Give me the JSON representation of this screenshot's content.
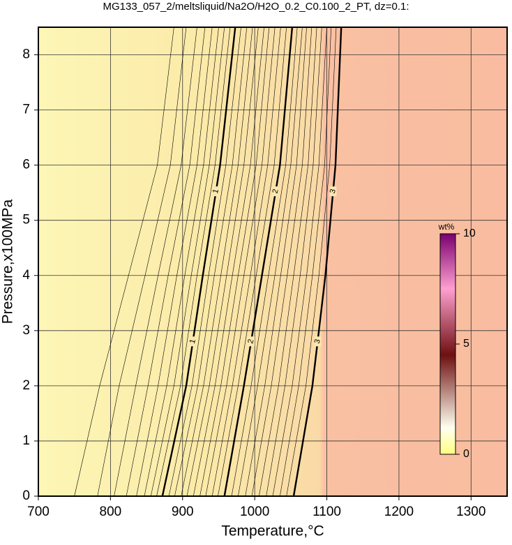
{
  "chart_data": {
    "type": "contour",
    "title": "MG133_057_2/meltsliquid/Na2O/H2O_0.2_C0.100_2_PT, dz=0.1:",
    "x_label": "Temperature,°C",
    "y_label": "Pressure,x100MPa",
    "xlim": [
      700,
      1350
    ],
    "ylim": [
      0,
      8.5
    ],
    "xticks": [
      700,
      800,
      900,
      1000,
      1100,
      1200,
      1300
    ],
    "yticks": [
      0,
      1,
      2,
      3,
      4,
      5,
      6,
      7,
      8
    ],
    "grid": true,
    "y_samples": [
      0,
      2,
      4,
      6,
      8.5
    ],
    "contours": [
      {
        "level": 0.2,
        "x": [
          750,
          785,
          825,
          865,
          888
        ]
      },
      {
        "level": 0.3,
        "x": [
          782,
          812,
          848,
          883,
          905
        ]
      },
      {
        "level": 0.4,
        "x": [
          805,
          835,
          866,
          898,
          920
        ]
      },
      {
        "level": 0.5,
        "x": [
          822,
          852,
          880,
          910,
          931
        ]
      },
      {
        "level": 0.6,
        "x": [
          836,
          866,
          892,
          920,
          941
        ]
      },
      {
        "level": 0.7,
        "x": [
          847,
          878,
          903,
          929,
          950
        ]
      },
      {
        "level": 0.8,
        "x": [
          856,
          888,
          912,
          937,
          958
        ]
      },
      {
        "level": 0.9,
        "x": [
          864,
          897,
          920,
          945,
          966
        ]
      },
      {
        "level": 1,
        "x": [
          872,
          905,
          928,
          952,
          973
        ]
      },
      {
        "level": 1.1,
        "x": [
          881,
          913,
          936,
          960,
          981
        ]
      },
      {
        "level": 1.2,
        "x": [
          889,
          921,
          944,
          969,
          989
        ]
      },
      {
        "level": 1.3,
        "x": [
          898,
          929,
          953,
          977,
          997
        ]
      },
      {
        "level": 1.4,
        "x": [
          906,
          937,
          961,
          985,
          1005
        ]
      },
      {
        "level": 1.5,
        "x": [
          915,
          945,
          969,
          994,
          1013
        ]
      },
      {
        "level": 1.6,
        "x": [
          924,
          953,
          977,
          1002,
          1020
        ]
      },
      {
        "level": 1.7,
        "x": [
          932,
          961,
          985,
          1010,
          1028
        ]
      },
      {
        "level": 1.8,
        "x": [
          941,
          969,
          994,
          1018,
          1036
        ]
      },
      {
        "level": 1.9,
        "x": [
          949,
          977,
          1002,
          1027,
          1044
        ]
      },
      {
        "level": 2,
        "x": [
          958,
          985,
          1010,
          1035,
          1052
        ]
      },
      {
        "level": 2.1,
        "x": [
          968,
          995,
          1019,
          1043,
          1059
        ]
      },
      {
        "level": 2.2,
        "x": [
          977,
          1004,
          1028,
          1050,
          1066
        ]
      },
      {
        "level": 2.3,
        "x": [
          987,
          1014,
          1036,
          1058,
          1072
        ]
      },
      {
        "level": 2.4,
        "x": [
          996,
          1023,
          1045,
          1066,
          1079
        ]
      },
      {
        "level": 2.5,
        "x": [
          1006,
          1033,
          1054,
          1074,
          1086
        ]
      },
      {
        "level": 2.6,
        "x": [
          1016,
          1042,
          1063,
          1081,
          1093
        ]
      },
      {
        "level": 2.7,
        "x": [
          1025,
          1052,
          1072,
          1089,
          1100
        ]
      },
      {
        "level": 2.8,
        "x": [
          1035,
          1061,
          1080,
          1097,
          1106
        ]
      },
      {
        "level": 2.9,
        "x": [
          1044,
          1071,
          1089,
          1104,
          1113
        ]
      },
      {
        "level": 3,
        "x": [
          1054,
          1080,
          1098,
          1112,
          1120
        ]
      }
    ],
    "colorbar": {
      "label": "wt%",
      "lim": [
        0,
        10
      ],
      "ticks": [
        0,
        5,
        10
      ]
    }
  }
}
